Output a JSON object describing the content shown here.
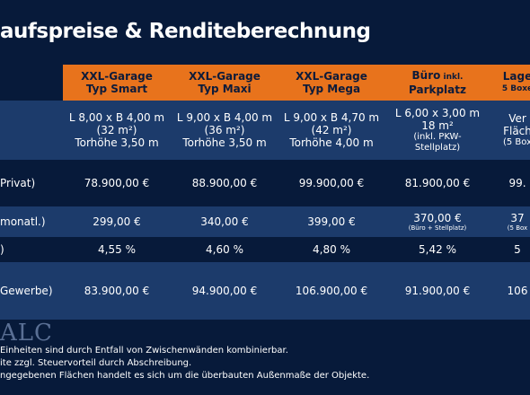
{
  "title": "aufspreise & Renditeberechnung",
  "columns": [
    {
      "line1": "XXL-Garage",
      "line2": "Typ Smart"
    },
    {
      "line1": "XXL-Garage",
      "line2": "Typ Maxi"
    },
    {
      "line1": "XXL-Garage",
      "line2": "Typ Mega"
    },
    {
      "line1_main": "Büro",
      "line1_small": " inkl.",
      "line2": "Parkplatz"
    },
    {
      "line1": "Lage",
      "line2": "5 Boxe"
    }
  ],
  "dimensions": [
    [
      "L 8,00 x B 4,00 m",
      "(32 m²)",
      "Torhöhe 3,50 m"
    ],
    [
      "L 9,00 x B 4,00 m",
      "(36 m²)",
      "Torhöhe 3,50 m"
    ],
    [
      "L 9,00 x B 4,70 m",
      "(42 m²)",
      "Torhöhe 4,00 m"
    ],
    [
      "L 6,00 x 3,00 m",
      "18 m²",
      "(inkl. PKW-",
      "Stellplatz)"
    ],
    [
      "Ver",
      "Fläch",
      "(5 Box"
    ]
  ],
  "rows": [
    {
      "label": "Privat)",
      "values": [
        "78.900,00 €",
        "88.900,00 €",
        "99.900,00 €",
        "81.900,00 €",
        "99."
      ]
    },
    {
      "label": "monatl.)",
      "values": [
        "299,00 €",
        "340,00 €",
        "399,00 €",
        "370,00 €",
        "37"
      ],
      "subs": [
        "",
        "",
        "",
        "(Büro + Stellplatz)",
        "(5 Box"
      ]
    },
    {
      "label": ")",
      "values": [
        "4,55 %",
        "4,60 %",
        "4,80 %",
        "5,42 %",
        "5"
      ]
    },
    {
      "label": "Gewerbe)",
      "values": [
        "83.900,00 €",
        "94.900,00 €",
        "106.900,00 €",
        "91.900,00 €",
        "106"
      ]
    }
  ],
  "logo_text": "ALC",
  "notes": [
    "Einheiten sind durch Entfall von Zwischenwänden kombinierbar.",
    "ite zzgl. Steuervorteil durch Abschreibung.",
    "ngegebenen Flächen handelt es sich um die überbauten Außenmaße der Objekte."
  ]
}
